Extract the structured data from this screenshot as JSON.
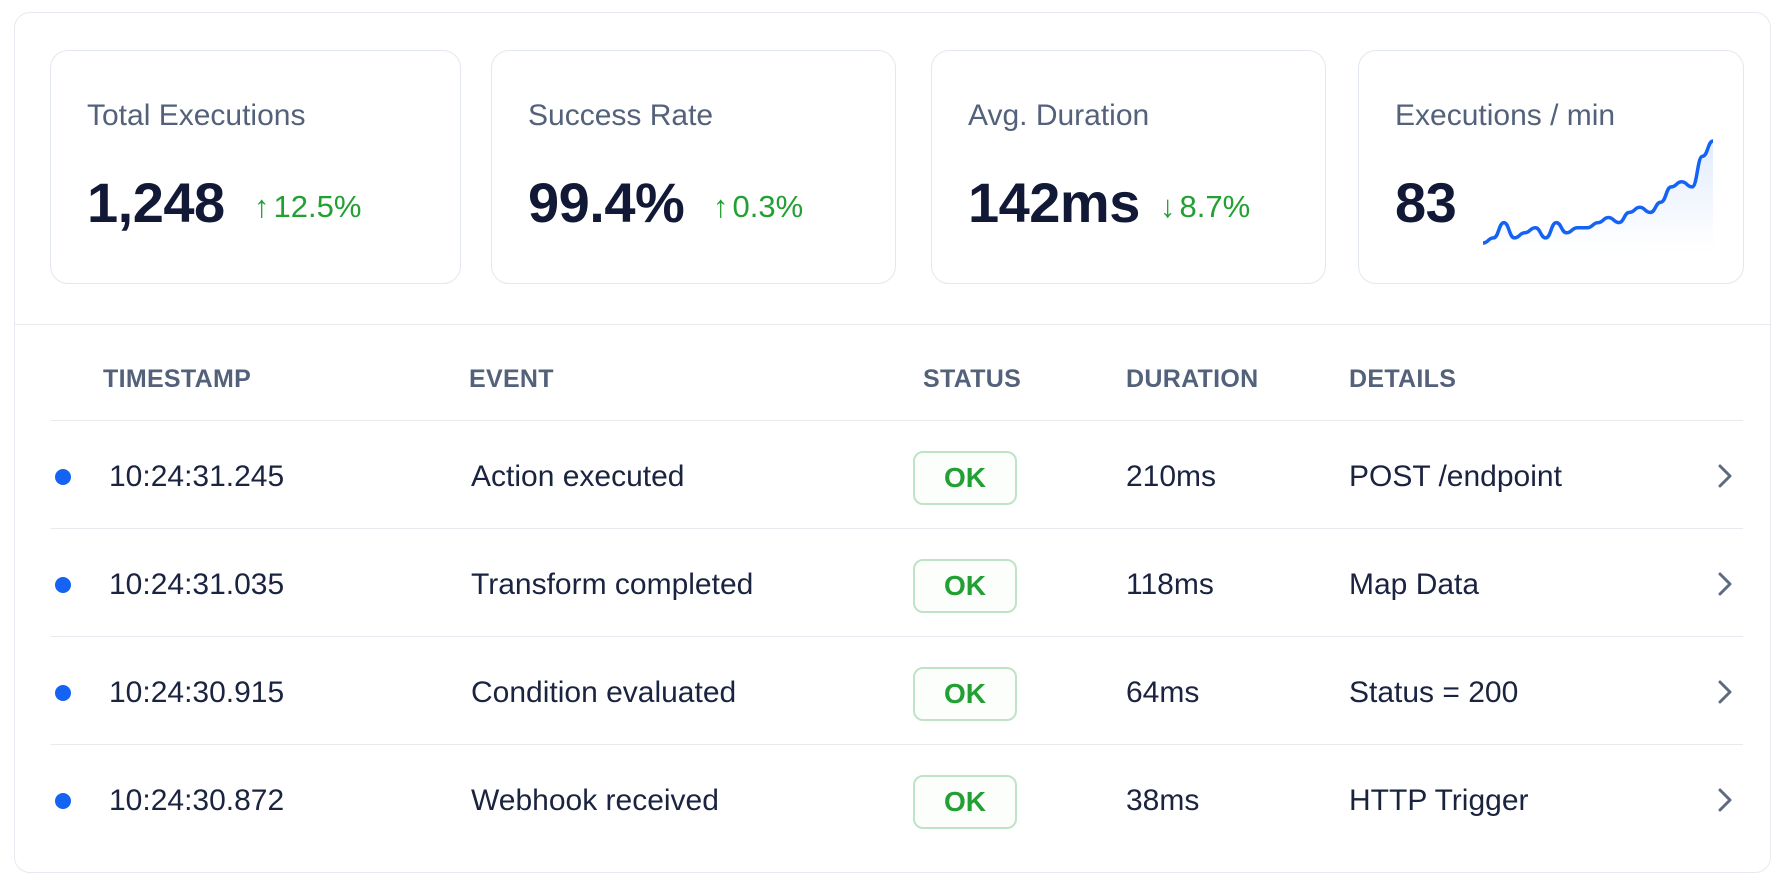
{
  "stats": [
    {
      "title": "Total Executions",
      "value": "1,248",
      "delta_arrow": "↑",
      "delta": "12.5%"
    },
    {
      "title": "Success Rate",
      "value": "99.4%",
      "delta_arrow": "↑",
      "delta": "0.3%"
    },
    {
      "title": "Avg. Duration",
      "value": "142ms",
      "delta_arrow": "↓",
      "delta": "8.7%"
    },
    {
      "title": "Executions / min",
      "value": "83"
    }
  ],
  "colors": {
    "accent": "#1463f3",
    "success": "#22a033",
    "text": "#111936",
    "muted": "#53617a",
    "border": "#e3e7ee"
  },
  "sparkline": {
    "values": [
      2,
      3,
      6,
      3,
      4,
      5,
      3,
      6,
      4,
      5,
      5,
      6,
      7,
      6,
      8,
      9,
      8,
      10,
      13,
      14,
      13,
      19,
      22
    ]
  },
  "table": {
    "headers": {
      "timestamp": "TIMESTAMP",
      "event": "EVENT",
      "status": "STATUS",
      "duration": "DURATION",
      "details": "DETAILS"
    },
    "rows": [
      {
        "timestamp": "10:24:31.245",
        "event": "Action executed",
        "status": "OK",
        "duration": "210ms",
        "details": "POST /endpoint"
      },
      {
        "timestamp": "10:24:31.035",
        "event": "Transform completed",
        "status": "OK",
        "duration": "118ms",
        "details": "Map Data"
      },
      {
        "timestamp": "10:24:30.915",
        "event": "Condition evaluated",
        "status": "OK",
        "duration": "64ms",
        "details": "Status = 200"
      },
      {
        "timestamp": "10:24:30.872",
        "event": "Webhook received",
        "status": "OK",
        "duration": "38ms",
        "details": "HTTP Trigger"
      }
    ]
  },
  "icons": {
    "row_indicator": "status-dot-icon",
    "row_action": "chevron-right-icon"
  }
}
